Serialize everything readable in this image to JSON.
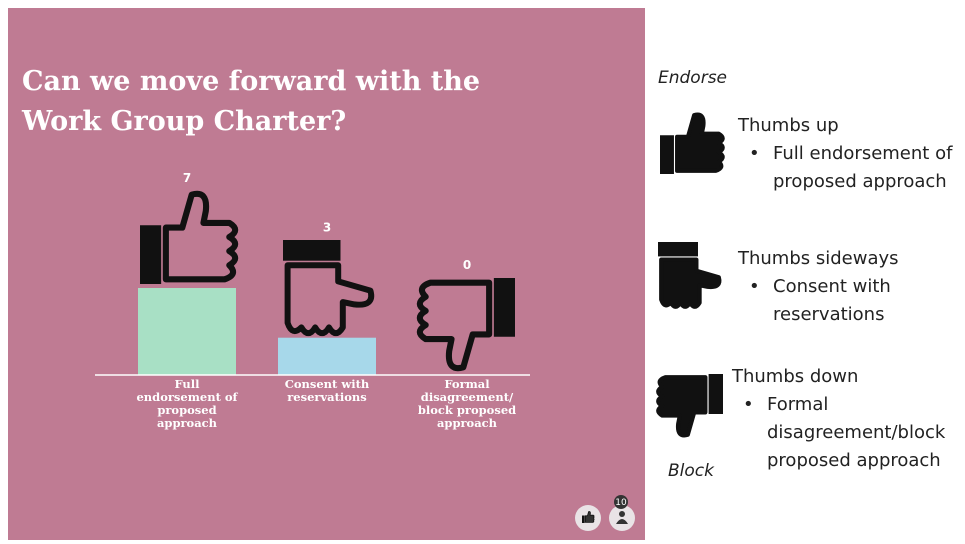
{
  "chart_data": {
    "type": "bar",
    "title": "Can we move forward with the Work Group Charter?",
    "categories": [
      "Full endorsement of proposed approach",
      "Consent with reservations",
      "Formal disagreement/ block proposed approach"
    ],
    "values": [
      7,
      3,
      0
    ],
    "colors": [
      "#a8e0c5",
      "#a7d8ea",
      "#f3c6a5"
    ]
  },
  "participants": "10",
  "legend_panel": {
    "top_label": "Endorse",
    "bottom_label": "Block",
    "items": [
      {
        "title": "Thumbs up",
        "description": "Full endorsement of proposed approach"
      },
      {
        "title": "Thumbs sideways",
        "description": "Consent with reservations"
      },
      {
        "title": "Thumbs down",
        "description": "Formal disagreement/block proposed approach"
      }
    ]
  }
}
